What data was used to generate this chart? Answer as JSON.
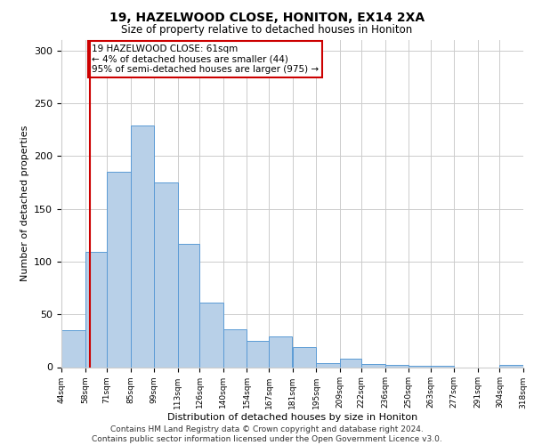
{
  "title": "19, HAZELWOOD CLOSE, HONITON, EX14 2XA",
  "subtitle": "Size of property relative to detached houses in Honiton",
  "xlabel": "Distribution of detached houses by size in Honiton",
  "ylabel": "Number of detached properties",
  "footer_lines": [
    "Contains HM Land Registry data © Crown copyright and database right 2024.",
    "Contains public sector information licensed under the Open Government Licence v3.0."
  ],
  "bin_labels": [
    "44sqm",
    "58sqm",
    "71sqm",
    "85sqm",
    "99sqm",
    "113sqm",
    "126sqm",
    "140sqm",
    "154sqm",
    "167sqm",
    "181sqm",
    "195sqm",
    "209sqm",
    "222sqm",
    "236sqm",
    "250sqm",
    "263sqm",
    "277sqm",
    "291sqm",
    "304sqm",
    "318sqm"
  ],
  "bin_edges": [
    44,
    58,
    71,
    85,
    99,
    113,
    126,
    140,
    154,
    167,
    181,
    195,
    209,
    222,
    236,
    250,
    263,
    277,
    291,
    304,
    318
  ],
  "bar_heights": [
    35,
    109,
    185,
    229,
    175,
    117,
    61,
    36,
    25,
    29,
    19,
    4,
    8,
    3,
    2,
    1,
    1,
    0,
    0,
    2
  ],
  "bar_color": "#b8d0e8",
  "bar_edge_color": "#5b9bd5",
  "property_line_x": 61,
  "property_line_color": "#cc0000",
  "annotation_title": "19 HAZELWOOD CLOSE: 61sqm",
  "annotation_line1": "← 4% of detached houses are smaller (44)",
  "annotation_line2": "95% of semi-detached houses are larger (975) →",
  "annotation_box_color": "#cc0000",
  "ylim": [
    0,
    310
  ],
  "yticks": [
    0,
    50,
    100,
    150,
    200,
    250,
    300
  ]
}
